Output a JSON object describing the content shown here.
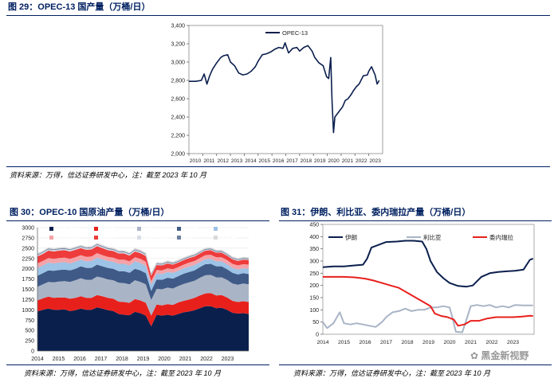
{
  "figures": [
    {
      "title": "图 29：OPEC-13 国产量（万桶/日）",
      "source": "资料来源：万得，信达证券研发中心，注：截至 2023 年 10 月"
    },
    {
      "title": "图 30：OPEC-10 国原油产量（万桶/日）",
      "source": "资料来源：万得，信达证券研发中心，注：截至 2023 年 10 月"
    },
    {
      "title": "图 31：伊朗、利比亚、委内瑞拉产量（万桶/日）",
      "source": "资料来源：万得，信达证券研发中心，注：截至 2023 年 10 月"
    }
  ],
  "watermark": "黑金新视野",
  "chart_data": [
    {
      "type": "line",
      "title": "图 29：OPEC-13 国产量（万桶/日）",
      "ylim": [
        2000,
        3400
      ],
      "yticks": [
        2000,
        2200,
        2400,
        2600,
        2800,
        3000,
        3200,
        3400
      ],
      "yticklabels": [
        "2,000",
        "2,200",
        "2,400",
        "2,600",
        "2,800",
        "3,000",
        "3,200",
        "3,400"
      ],
      "xlim": [
        2010,
        2024
      ],
      "xticks": [
        "2010",
        "2011",
        "2012",
        "2013",
        "2014",
        "2015",
        "2016",
        "2017",
        "2018",
        "2019",
        "2020",
        "2021",
        "2022",
        "2023"
      ],
      "legend_position": "top-center",
      "series": [
        {
          "name": "OPEC-13",
          "color": "#0b1f4d",
          "x": [
            2010.0,
            2010.5,
            2010.9,
            2011.1,
            2011.3,
            2011.5,
            2011.7,
            2012.0,
            2012.3,
            2012.5,
            2012.8,
            2013.0,
            2013.3,
            2013.6,
            2013.9,
            2014.2,
            2014.5,
            2014.8,
            2015.0,
            2015.3,
            2015.6,
            2015.9,
            2016.2,
            2016.5,
            2016.8,
            2016.95,
            2017.2,
            2017.5,
            2017.8,
            2018.0,
            2018.3,
            2018.6,
            2018.9,
            2019.1,
            2019.4,
            2019.7,
            2019.95,
            2020.1,
            2020.25,
            2020.35,
            2020.45,
            2020.55,
            2020.7,
            2020.9,
            2021.1,
            2021.3,
            2021.5,
            2021.7,
            2021.9,
            2022.1,
            2022.3,
            2022.6,
            2022.9,
            2023.0,
            2023.2,
            2023.45,
            2023.6,
            2023.75
          ],
          "y": [
            2790,
            2790,
            2800,
            2870,
            2760,
            2850,
            2920,
            2990,
            3050,
            3070,
            3080,
            3000,
            2960,
            2880,
            2860,
            2870,
            2900,
            2950,
            3010,
            3080,
            3090,
            3110,
            3140,
            3160,
            3150,
            3210,
            3100,
            3150,
            3160,
            3120,
            3160,
            3180,
            3120,
            3050,
            2990,
            2960,
            2840,
            2820,
            3050,
            2560,
            2230,
            2400,
            2430,
            2470,
            2510,
            2580,
            2600,
            2640,
            2690,
            2730,
            2760,
            2850,
            2860,
            2900,
            2950,
            2860,
            2760,
            2800
          ]
        }
      ]
    },
    {
      "type": "area",
      "title": "图 30：OPEC-10 国原油产量（万桶/日）",
      "ylim": [
        0,
        3000
      ],
      "yticks": [
        0,
        250,
        500,
        750,
        1000,
        1250,
        1500,
        1750,
        2000,
        2250,
        2500,
        2750,
        3000
      ],
      "xlim": [
        2014,
        2024
      ],
      "xticks": [
        "2014",
        "2015",
        "2016",
        "2017",
        "2018",
        "2019",
        "2020",
        "2021",
        "2022",
        "2023"
      ],
      "stacked": true,
      "legend_position": "top",
      "series": [
        {
          "name": "沙特阿拉伯",
          "color": "#0b1f4d",
          "values": [
            960,
            1000,
            1030,
            1000,
            1000,
            1010,
            970,
            990,
            1030,
            1000,
            1000,
            1060,
            1030,
            990,
            970,
            900,
            880,
            870,
            950,
            920,
            860,
            600,
            880,
            860,
            880,
            860,
            900,
            940,
            960,
            990,
            1040,
            1090,
            1090,
            1040,
            1050,
            1000,
            930,
            910,
            920,
            900
          ]
        },
        {
          "name": "阿联酋",
          "color": "#e8201c",
          "values": [
            270,
            280,
            290,
            290,
            300,
            290,
            300,
            300,
            300,
            290,
            290,
            300,
            300,
            300,
            300,
            300,
            310,
            300,
            310,
            310,
            310,
            260,
            250,
            250,
            260,
            260,
            280,
            280,
            290,
            300,
            310,
            310,
            320,
            310,
            310,
            300,
            290,
            280,
            290,
            290
          ]
        },
        {
          "name": "伊拉克",
          "color": "#a9b4c6",
          "values": [
            330,
            340,
            360,
            380,
            390,
            400,
            410,
            430,
            440,
            440,
            440,
            450,
            450,
            450,
            450,
            460,
            460,
            450,
            460,
            450,
            450,
            380,
            380,
            390,
            400,
            400,
            400,
            410,
            420,
            420,
            430,
            440,
            440,
            440,
            430,
            430,
            420,
            420,
            430,
            430
          ]
        },
        {
          "name": "科威特",
          "color": "#3f5a87",
          "values": [
            270,
            270,
            280,
            280,
            280,
            280,
            280,
            280,
            290,
            290,
            290,
            290,
            280,
            280,
            280,
            280,
            290,
            280,
            280,
            280,
            270,
            220,
            230,
            230,
            240,
            240,
            240,
            250,
            250,
            250,
            260,
            270,
            270,
            270,
            270,
            260,
            260,
            250,
            250,
            250
          ]
        },
        {
          "name": "尼日利亚",
          "color": "#9dc3e6",
          "values": [
            190,
            190,
            190,
            180,
            180,
            180,
            170,
            170,
            160,
            160,
            170,
            170,
            170,
            170,
            170,
            180,
            180,
            180,
            180,
            180,
            180,
            150,
            140,
            140,
            140,
            140,
            130,
            130,
            130,
            130,
            120,
            120,
            120,
            120,
            120,
            120,
            120,
            120,
            120,
            130
          ]
        },
        {
          "name": "阿尔及利亚",
          "color": "#f4a3a8",
          "values": [
            110,
            110,
            110,
            110,
            110,
            110,
            110,
            110,
            110,
            110,
            110,
            110,
            100,
            100,
            100,
            100,
            100,
            100,
            100,
            100,
            100,
            90,
            90,
            90,
            90,
            90,
            90,
            90,
            100,
            100,
            100,
            100,
            100,
            100,
            100,
            100,
            100,
            100,
            100,
            100
          ]
        },
        {
          "name": "安哥拉",
          "color": "#ee3c3c",
          "values": [
            170,
            170,
            180,
            180,
            180,
            180,
            180,
            180,
            170,
            170,
            170,
            170,
            170,
            160,
            160,
            150,
            150,
            140,
            140,
            140,
            140,
            130,
            120,
            120,
            120,
            110,
            110,
            110,
            110,
            110,
            110,
            110,
            110,
            110,
            110,
            110,
            110,
            110,
            110,
            110
          ]
        },
        {
          "name": "赤道几内亚",
          "color": "#d8dde6",
          "values": [
            30,
            30,
            30,
            30,
            30,
            30,
            30,
            30,
            30,
            30,
            30,
            30,
            30,
            30,
            30,
            30,
            30,
            30,
            30,
            30,
            30,
            20,
            20,
            20,
            20,
            20,
            20,
            20,
            20,
            20,
            20,
            20,
            20,
            20,
            20,
            20,
            20,
            20,
            20,
            20
          ]
        },
        {
          "name": "加蓬",
          "color": "#6b7f9e",
          "values": [
            20,
            20,
            20,
            20,
            20,
            20,
            20,
            20,
            20,
            20,
            20,
            20,
            20,
            20,
            20,
            20,
            20,
            20,
            20,
            20,
            20,
            20,
            20,
            20,
            20,
            20,
            20,
            20,
            20,
            20,
            20,
            20,
            20,
            20,
            20,
            20,
            20,
            20,
            20,
            20
          ]
        },
        {
          "name": "刚果(布)",
          "color": "#d9d9d9",
          "values": [
            30,
            30,
            30,
            30,
            30,
            30,
            30,
            30,
            30,
            30,
            30,
            30,
            30,
            30,
            30,
            30,
            30,
            30,
            30,
            30,
            30,
            30,
            30,
            30,
            30,
            30,
            30,
            30,
            30,
            30,
            30,
            30,
            30,
            30,
            30,
            30,
            30,
            30,
            30,
            30
          ]
        }
      ]
    },
    {
      "type": "line",
      "title": "图 31：伊朗、利比亚、委内瑞拉产量（万桶/日）",
      "ylim": [
        0,
        450
      ],
      "yticks": [
        0,
        50,
        100,
        150,
        200,
        250,
        300,
        350,
        400,
        450
      ],
      "xlim": [
        2014,
        2024
      ],
      "xticks": [
        "2014",
        "2015",
        "2016",
        "2017",
        "2018",
        "2019",
        "2020",
        "2021",
        "2022",
        "2023"
      ],
      "legend_position": "top",
      "series": [
        {
          "name": "伊朗",
          "color": "#0b1f4d",
          "x": [
            2014.0,
            2014.5,
            2015.0,
            2015.5,
            2015.9,
            2016.1,
            2016.3,
            2016.6,
            2017.0,
            2017.5,
            2017.9,
            2018.3,
            2018.7,
            2018.9,
            2019.1,
            2019.4,
            2019.7,
            2020.0,
            2020.4,
            2020.8,
            2021.1,
            2021.5,
            2021.9,
            2022.3,
            2022.7,
            2023.1,
            2023.5,
            2023.8,
            2023.95
          ],
          "y": [
            275,
            278,
            278,
            282,
            285,
            310,
            355,
            365,
            378,
            380,
            383,
            383,
            380,
            350,
            300,
            255,
            230,
            210,
            198,
            195,
            200,
            235,
            250,
            255,
            258,
            260,
            265,
            305,
            310
          ]
        },
        {
          "name": "利比亚",
          "color": "#a9b4c6",
          "x": [
            2014.0,
            2014.2,
            2014.5,
            2014.8,
            2015.0,
            2015.3,
            2015.6,
            2015.9,
            2016.2,
            2016.5,
            2016.8,
            2017.0,
            2017.3,
            2017.6,
            2017.9,
            2018.2,
            2018.5,
            2018.8,
            2019.1,
            2019.4,
            2019.7,
            2020.0,
            2020.1,
            2020.3,
            2020.6,
            2020.8,
            2021.0,
            2021.3,
            2021.6,
            2021.9,
            2022.2,
            2022.5,
            2022.8,
            2023.1,
            2023.5,
            2023.95
          ],
          "y": [
            50,
            25,
            45,
            90,
            45,
            40,
            45,
            40,
            35,
            30,
            50,
            70,
            90,
            95,
            105,
            95,
            100,
            100,
            110,
            110,
            115,
            110,
            80,
            10,
            8,
            60,
            115,
            120,
            115,
            120,
            110,
            115,
            110,
            120,
            118,
            118
          ]
        },
        {
          "name": "委内瑞拉",
          "color": "#e8201c",
          "x": [
            2014.0,
            2014.5,
            2015.0,
            2015.5,
            2016.0,
            2016.4,
            2016.8,
            2017.2,
            2017.6,
            2018.0,
            2018.4,
            2018.8,
            2019.1,
            2019.3,
            2019.6,
            2019.9,
            2020.2,
            2020.4,
            2020.7,
            2021.0,
            2021.4,
            2021.8,
            2022.2,
            2022.6,
            2023.0,
            2023.4,
            2023.8,
            2023.95
          ],
          "y": [
            235,
            235,
            235,
            233,
            228,
            220,
            210,
            200,
            190,
            170,
            150,
            130,
            115,
            85,
            75,
            70,
            60,
            35,
            40,
            55,
            55,
            65,
            70,
            70,
            70,
            72,
            76,
            75
          ]
        }
      ]
    }
  ]
}
